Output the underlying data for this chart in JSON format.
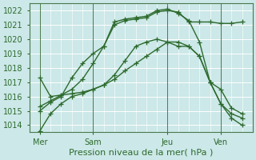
{
  "xlabel": "Pression niveau de la mer( hPa )",
  "ylim": [
    1013.5,
    1022.5
  ],
  "yticks": [
    1014,
    1015,
    1016,
    1017,
    1018,
    1019,
    1020,
    1021,
    1022
  ],
  "xlim": [
    0,
    10.5
  ],
  "bg_color": "#cce8e8",
  "grid_color": "#ffffff",
  "line_color": "#2d6a2d",
  "xtick_labels": [
    "Mer",
    "Sam",
    "Jeu",
    "Ven"
  ],
  "xtick_positions": [
    0.5,
    3.0,
    6.5,
    9.0
  ],
  "vline_positions": [
    0.5,
    3.0,
    6.5,
    9.0
  ],
  "lines": [
    {
      "x": [
        0.5,
        1.0,
        1.5,
        2.0,
        2.5,
        3.0,
        3.5,
        4.0,
        4.5,
        5.0,
        5.5,
        6.0,
        6.5,
        7.0,
        7.5,
        8.0,
        8.5,
        9.0,
        9.5,
        10.0
      ],
      "y": [
        1015.0,
        1015.6,
        1016.0,
        1017.3,
        1018.3,
        1019.0,
        1019.5,
        1021.0,
        1021.3,
        1021.4,
        1021.5,
        1021.9,
        1022.0,
        1021.9,
        1021.2,
        1021.2,
        1021.2,
        1021.1,
        1021.1,
        1021.2
      ]
    },
    {
      "x": [
        0.5,
        1.0,
        1.5,
        2.0,
        2.5,
        3.0,
        3.5,
        4.0,
        4.5,
        5.0,
        5.5,
        6.0,
        6.5,
        7.0,
        7.5,
        8.0,
        8.5,
        9.0,
        9.5,
        10.0
      ],
      "y": [
        1015.3,
        1015.7,
        1016.1,
        1016.5,
        1017.2,
        1018.3,
        1019.5,
        1021.2,
        1021.4,
        1021.5,
        1021.6,
        1022.0,
        1022.1,
        1021.8,
        1021.3,
        1019.8,
        1017.0,
        1015.5,
        1014.5,
        1014.0
      ]
    },
    {
      "x": [
        0.5,
        1.0,
        1.5,
        2.0,
        2.5,
        3.0,
        3.5,
        4.0,
        4.5,
        5.0,
        5.5,
        6.0,
        6.5,
        7.0,
        7.5,
        8.0,
        8.5,
        9.0,
        9.5,
        10.0
      ],
      "y": [
        1017.3,
        1016.0,
        1016.1,
        1016.2,
        1016.3,
        1016.5,
        1016.8,
        1017.5,
        1018.5,
        1019.5,
        1019.8,
        1020.0,
        1019.8,
        1019.5,
        1019.5,
        1018.8,
        1017.0,
        1015.5,
        1014.8,
        1014.5
      ]
    },
    {
      "x": [
        0.5,
        1.0,
        1.5,
        2.0,
        2.5,
        3.0,
        3.5,
        4.0,
        4.5,
        5.0,
        5.5,
        6.0,
        6.5,
        7.0,
        7.5,
        8.0,
        8.5,
        9.0,
        9.5,
        10.0
      ],
      "y": [
        1013.6,
        1014.8,
        1015.5,
        1016.0,
        1016.2,
        1016.5,
        1016.8,
        1017.2,
        1017.8,
        1018.3,
        1018.8,
        1019.3,
        1019.8,
        1019.8,
        1019.5,
        1018.8,
        1017.0,
        1016.5,
        1015.2,
        1014.8
      ]
    }
  ],
  "marker": "+",
  "markersize": 4,
  "linewidth": 1.0,
  "fontsize_ticks": 7,
  "fontsize_xlabel": 8
}
